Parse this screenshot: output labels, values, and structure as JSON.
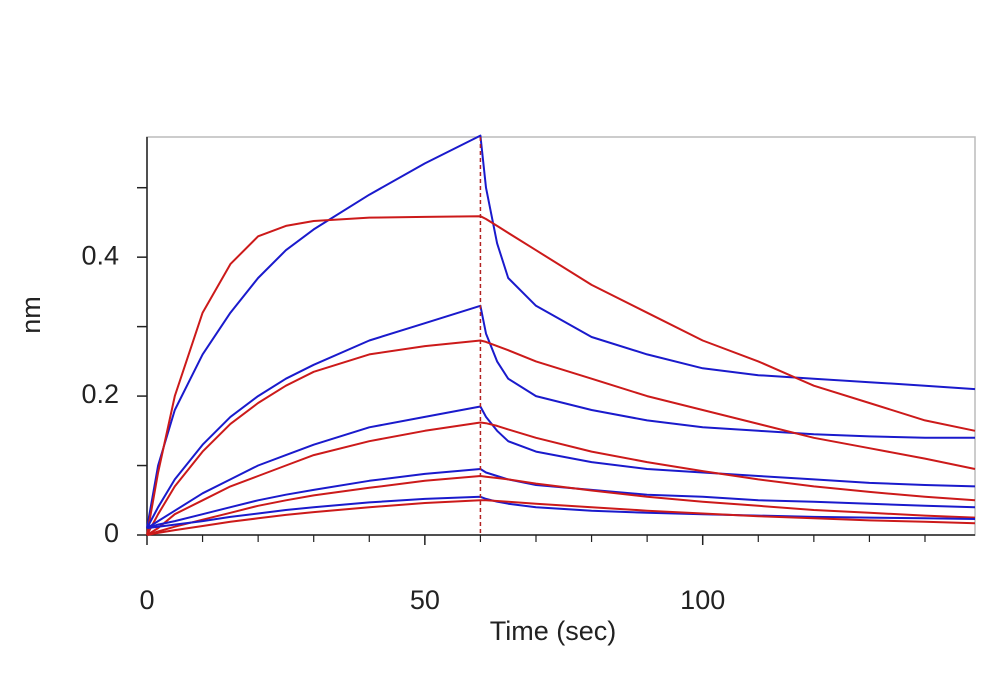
{
  "chart_data": {
    "type": "line",
    "xlabel": "Time (sec)",
    "ylabel": "nm",
    "x": [
      0,
      2,
      5,
      10,
      15,
      20,
      25,
      30,
      40,
      50,
      60,
      61,
      63,
      65,
      70,
      80,
      90,
      100,
      110,
      120,
      130,
      140,
      149
    ],
    "xlim": [
      0,
      149
    ],
    "ylim": [
      0,
      0.573
    ],
    "xticks": [
      0,
      50,
      100
    ],
    "yticks": [
      0,
      0.2,
      0.4
    ],
    "xminor": [
      10,
      20,
      30,
      40,
      60,
      70,
      80,
      90,
      110,
      120,
      130,
      140
    ],
    "yminor": [
      0.1,
      0.3,
      0.5
    ],
    "vline": 60,
    "vline_color": "#b22222",
    "series": [
      {
        "color": "#1a1acc",
        "values": [
          0.01,
          0.1,
          0.18,
          0.26,
          0.32,
          0.37,
          0.41,
          0.44,
          0.49,
          0.535,
          0.575,
          0.5,
          0.42,
          0.37,
          0.33,
          0.285,
          0.26,
          0.24,
          0.23,
          0.225,
          0.22,
          0.215,
          0.21
        ]
      },
      {
        "color": "#cc1a1a",
        "values": [
          0,
          0.09,
          0.2,
          0.32,
          0.39,
          0.43,
          0.445,
          0.452,
          0.457,
          0.458,
          0.459,
          0.455,
          0.445,
          0.435,
          0.41,
          0.36,
          0.32,
          0.28,
          0.25,
          0.215,
          0.19,
          0.165,
          0.15
        ]
      },
      {
        "color": "#1a1acc",
        "values": [
          0.01,
          0.04,
          0.08,
          0.13,
          0.17,
          0.2,
          0.225,
          0.245,
          0.28,
          0.305,
          0.33,
          0.29,
          0.25,
          0.225,
          0.2,
          0.18,
          0.165,
          0.155,
          0.15,
          0.145,
          0.142,
          0.14,
          0.14
        ]
      },
      {
        "color": "#cc1a1a",
        "values": [
          0,
          0.03,
          0.07,
          0.12,
          0.16,
          0.19,
          0.215,
          0.235,
          0.26,
          0.272,
          0.28,
          0.278,
          0.272,
          0.266,
          0.25,
          0.225,
          0.2,
          0.18,
          0.16,
          0.14,
          0.125,
          0.11,
          0.095
        ]
      },
      {
        "color": "#1a1acc",
        "values": [
          0.01,
          0.02,
          0.035,
          0.06,
          0.08,
          0.1,
          0.115,
          0.13,
          0.155,
          0.17,
          0.185,
          0.17,
          0.15,
          0.135,
          0.12,
          0.105,
          0.095,
          0.09,
          0.085,
          0.08,
          0.075,
          0.072,
          0.07
        ]
      },
      {
        "color": "#cc1a1a",
        "values": [
          0,
          0.01,
          0.03,
          0.05,
          0.07,
          0.085,
          0.1,
          0.115,
          0.135,
          0.15,
          0.162,
          0.161,
          0.157,
          0.152,
          0.14,
          0.12,
          0.105,
          0.092,
          0.08,
          0.07,
          0.062,
          0.055,
          0.05
        ]
      },
      {
        "color": "#1a1acc",
        "values": [
          0.01,
          0.015,
          0.02,
          0.03,
          0.04,
          0.05,
          0.058,
          0.065,
          0.078,
          0.088,
          0.095,
          0.09,
          0.085,
          0.08,
          0.072,
          0.065,
          0.058,
          0.055,
          0.05,
          0.048,
          0.045,
          0.042,
          0.04
        ]
      },
      {
        "color": "#cc1a1a",
        "values": [
          0,
          0.005,
          0.012,
          0.022,
          0.032,
          0.042,
          0.05,
          0.057,
          0.068,
          0.078,
          0.085,
          0.084,
          0.082,
          0.08,
          0.074,
          0.064,
          0.055,
          0.048,
          0.042,
          0.036,
          0.032,
          0.028,
          0.025
        ]
      },
      {
        "color": "#1a1acc",
        "values": [
          0.01,
          0.012,
          0.015,
          0.02,
          0.026,
          0.031,
          0.036,
          0.04,
          0.047,
          0.052,
          0.055,
          0.052,
          0.048,
          0.045,
          0.04,
          0.035,
          0.032,
          0.03,
          0.028,
          0.026,
          0.025,
          0.024,
          0.023
        ]
      },
      {
        "color": "#cc1a1a",
        "values": [
          0,
          0.003,
          0.007,
          0.013,
          0.019,
          0.024,
          0.029,
          0.033,
          0.04,
          0.046,
          0.05,
          0.05,
          0.049,
          0.048,
          0.045,
          0.04,
          0.035,
          0.031,
          0.027,
          0.024,
          0.021,
          0.019,
          0.017
        ]
      }
    ]
  }
}
